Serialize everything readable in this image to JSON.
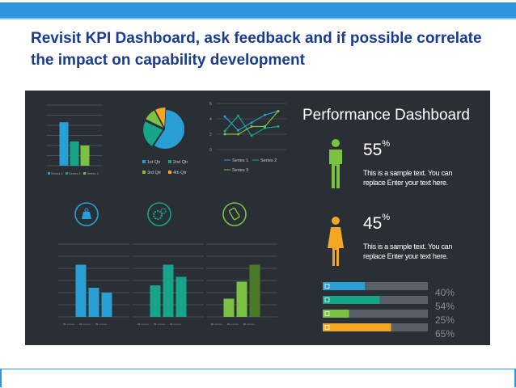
{
  "slide": {
    "title": "Revisit KPI Dashboard, ask feedback and if possible correlate the impact on capability development"
  },
  "dashboard": {
    "heading": "Performance Dashboard",
    "male": {
      "percent": "55",
      "sign": "%",
      "desc_line1": "This is a sample text. You can",
      "desc_line2": "replace Enter your text here."
    },
    "female": {
      "percent": "45",
      "sign": "%",
      "desc_line1": "This is a sample text. You can",
      "desc_line2": "replace Enter your text here."
    },
    "progress": [
      {
        "value": 40,
        "label": "40%",
        "color": "#2a9fd6",
        "icon": "monitor-icon"
      },
      {
        "value": 54,
        "label": "54%",
        "color": "#17a589",
        "icon": "share-icon"
      },
      {
        "value": 25,
        "label": "25%",
        "color": "#7cc242",
        "icon": "chart-icon"
      },
      {
        "value": 65,
        "label": "65%",
        "color": "#f5a623",
        "icon": "folder-icon"
      }
    ]
  },
  "chart_data": [
    {
      "type": "bar",
      "categories": [
        "Category 1"
      ],
      "series": [
        {
          "name": "Series 1",
          "values": [
            4.3
          ],
          "color": "#2a9fd6"
        },
        {
          "name": "Series 2",
          "values": [
            2.4
          ],
          "color": "#17a589"
        },
        {
          "name": "Series 3",
          "values": [
            2.0
          ],
          "color": "#7cc242"
        }
      ],
      "ylim": [
        0,
        6
      ]
    },
    {
      "type": "pie",
      "labels": [
        "1st Qtr",
        "2nd Qtr",
        "3rd Qtr",
        "4th Qtr"
      ],
      "values": [
        8.2,
        3.2,
        1.4,
        1.2
      ],
      "colors": [
        "#2a9fd6",
        "#17a589",
        "#7cc242",
        "#f5a623"
      ]
    },
    {
      "type": "line",
      "x": [
        1,
        2,
        3,
        4,
        5
      ],
      "series": [
        {
          "name": "Series 1",
          "values": [
            4.3,
            2.5,
            3.5,
            4.5,
            5.0
          ],
          "color": "#2a9fd6"
        },
        {
          "name": "Series 2",
          "values": [
            2.4,
            4.4,
            1.8,
            2.8,
            3.0
          ],
          "color": "#17a589"
        },
        {
          "name": "Series 3",
          "values": [
            2.0,
            2.0,
            3.0,
            3.0,
            5.0
          ],
          "color": "#7cc242"
        }
      ],
      "yticks": [
        "0",
        "2",
        "4",
        "6"
      ],
      "ylim": [
        0,
        6
      ]
    },
    {
      "type": "bar",
      "categories": [
        "Category 1"
      ],
      "series": [
        {
          "name": "Series 1",
          "values": [
            4.3
          ],
          "color": "#2a9fd6"
        },
        {
          "name": "Series 2",
          "values": [
            2.4
          ],
          "color": "#2a9fd6"
        },
        {
          "name": "Series 3",
          "values": [
            2.0
          ],
          "color": "#2a9fd6"
        }
      ],
      "ylim": [
        0,
        6
      ]
    },
    {
      "type": "bar",
      "categories": [
        "Category 1"
      ],
      "series": [
        {
          "name": "Series 1",
          "values": [
            2.6
          ],
          "color": "#17a589"
        },
        {
          "name": "Series 2",
          "values": [
            4.3
          ],
          "color": "#17a589"
        },
        {
          "name": "Series 3",
          "values": [
            3.3
          ],
          "color": "#17a589"
        }
      ],
      "ylim": [
        0,
        6
      ]
    },
    {
      "type": "bar",
      "categories": [
        "Category 1"
      ],
      "series": [
        {
          "name": "Series 1",
          "values": [
            1.5
          ],
          "color": "#7cc242"
        },
        {
          "name": "Series 2",
          "values": [
            2.9
          ],
          "color": "#7cc242"
        },
        {
          "name": "Series 3",
          "values": [
            4.3
          ],
          "color": "#4a7a25"
        }
      ],
      "ylim": [
        0,
        6
      ]
    }
  ],
  "legends": {
    "bar1": [
      "Series 1",
      "Series 2",
      "Series 3"
    ],
    "pie": [
      "1st Qtr",
      "2nd Qtr",
      "3rd Qtr",
      "4th Qtr"
    ],
    "line": [
      "Series 1",
      "Series 2",
      "Series 3"
    ]
  },
  "icons": [
    "scale-icon",
    "gears-icon",
    "phone-icon"
  ]
}
